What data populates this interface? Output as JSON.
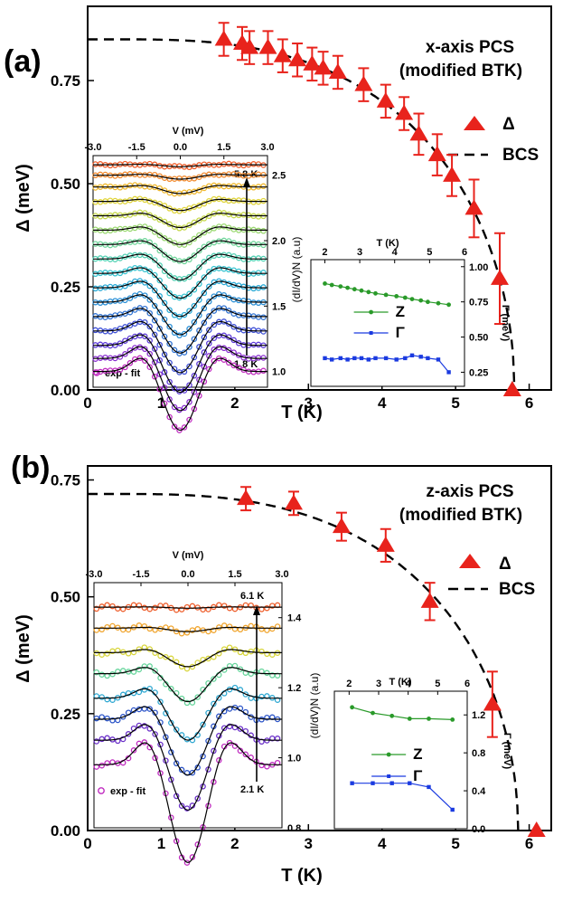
{
  "chart_data": [
    {
      "panel": "(a)",
      "type": "scatter",
      "title": "x-axis PCS",
      "subtitle": "(modified BTK)",
      "xlabel": "T (K)",
      "ylabel": "Δ (meV)",
      "xlim": [
        0,
        6.3
      ],
      "ylim": [
        0,
        0.93
      ],
      "xticks": [
        0,
        1,
        2,
        3,
        4,
        5,
        6
      ],
      "yticks": [
        0.0,
        0.25,
        0.5,
        0.75
      ],
      "legend": [
        "Δ",
        "BCS"
      ],
      "delta_series": {
        "name": "Δ",
        "x": [
          1.85,
          2.1,
          2.2,
          2.45,
          2.65,
          2.85,
          3.05,
          3.2,
          3.4,
          3.75,
          4.05,
          4.3,
          4.5,
          4.75,
          4.95,
          5.25,
          5.6,
          5.77
        ],
        "y": [
          0.85,
          0.84,
          0.83,
          0.83,
          0.81,
          0.8,
          0.79,
          0.78,
          0.77,
          0.74,
          0.7,
          0.67,
          0.62,
          0.57,
          0.52,
          0.44,
          0.27,
          0.0
        ],
        "err": [
          0.04,
          0.04,
          0.04,
          0.04,
          0.04,
          0.04,
          0.04,
          0.04,
          0.04,
          0.04,
          0.04,
          0.04,
          0.05,
          0.05,
          0.05,
          0.07,
          0.11,
          0
        ]
      },
      "bcs_fit": {
        "name": "BCS",
        "delta0": 0.85,
        "tc": 5.8
      },
      "inset_spectra": {
        "xlabel": "V (mV)",
        "xlim": [
          -3.0,
          3.0
        ],
        "xticks": [
          -3.0,
          -1.5,
          0.0,
          1.5,
          3.0
        ],
        "ylabel": "(dI/dV)N (a.u)",
        "ylim": [
          0.88,
          2.65
        ],
        "yticks": [
          1.0,
          1.5,
          2.0,
          2.5
        ],
        "t_low": "1.8 K",
        "t_high": "5.8 K",
        "legend": "exp  -  fit",
        "curves": [
          {
            "offset": 1.0,
            "depth": 0.45,
            "color": "#c02bc0"
          },
          {
            "offset": 1.1,
            "depth": 0.4,
            "color": "#8a2fd0"
          },
          {
            "offset": 1.2,
            "depth": 0.36,
            "color": "#5d3bd8"
          },
          {
            "offset": 1.31,
            "depth": 0.32,
            "color": "#3d4fd6"
          },
          {
            "offset": 1.42,
            "depth": 0.28,
            "color": "#2f72d2"
          },
          {
            "offset": 1.53,
            "depth": 0.25,
            "color": "#2a8fd6"
          },
          {
            "offset": 1.64,
            "depth": 0.22,
            "color": "#27a9d6"
          },
          {
            "offset": 1.75,
            "depth": 0.19,
            "color": "#36c3d0"
          },
          {
            "offset": 1.86,
            "depth": 0.16,
            "color": "#52d0b3"
          },
          {
            "offset": 1.97,
            "depth": 0.13,
            "color": "#6fd59a"
          },
          {
            "offset": 2.08,
            "depth": 0.11,
            "color": "#9ad870"
          },
          {
            "offset": 2.19,
            "depth": 0.09,
            "color": "#c6d84a"
          },
          {
            "offset": 2.3,
            "depth": 0.07,
            "color": "#e0d43a"
          },
          {
            "offset": 2.41,
            "depth": 0.05,
            "color": "#f0b82e"
          },
          {
            "offset": 2.5,
            "depth": 0.03,
            "color": "#f28a2e"
          },
          {
            "offset": 2.58,
            "depth": 0.015,
            "color": "#ee5d2a"
          }
        ]
      },
      "inset_params": {
        "xlabel": "T (K)",
        "xlim": [
          1.6,
          6.0
        ],
        "xticks": [
          2,
          3,
          4,
          5,
          6
        ],
        "ylabel": "Γ (meV)",
        "ylim": [
          0.15,
          1.05
        ],
        "yticks": [
          0.25,
          0.5,
          0.75,
          1.0
        ],
        "series": [
          {
            "name": "Z",
            "color": "#2a9a2a",
            "x": [
              2.0,
              2.2,
              2.45,
              2.65,
              2.85,
              3.05,
              3.25,
              3.45,
              3.75,
              4.05,
              4.3,
              4.5,
              4.75,
              4.95,
              5.25,
              5.55
            ],
            "y": [
              0.88,
              0.87,
              0.86,
              0.85,
              0.84,
              0.83,
              0.82,
              0.81,
              0.8,
              0.79,
              0.78,
              0.77,
              0.76,
              0.75,
              0.74,
              0.73
            ]
          },
          {
            "name": "Γ",
            "color": "#1a3ae0",
            "x": [
              2.0,
              2.2,
              2.45,
              2.65,
              2.85,
              3.05,
              3.25,
              3.45,
              3.75,
              4.05,
              4.3,
              4.5,
              4.75,
              4.95,
              5.25,
              5.55
            ],
            "y": [
              0.35,
              0.34,
              0.35,
              0.34,
              0.35,
              0.35,
              0.34,
              0.35,
              0.35,
              0.34,
              0.35,
              0.37,
              0.36,
              0.35,
              0.34,
              0.25
            ]
          }
        ]
      }
    },
    {
      "panel": "(b)",
      "type": "scatter",
      "title": "z-axis PCS",
      "subtitle": "(modified BTK)",
      "xlabel": "T (K)",
      "ylabel": "Δ (meV)",
      "xlim": [
        0,
        6.3
      ],
      "ylim": [
        0,
        0.78
      ],
      "xticks": [
        0,
        1,
        2,
        3,
        4,
        5,
        6
      ],
      "yticks": [
        0.0,
        0.25,
        0.5,
        0.75
      ],
      "legend": [
        "Δ",
        "BCS"
      ],
      "delta_series": {
        "name": "Δ",
        "x": [
          2.15,
          2.8,
          3.45,
          4.05,
          4.65,
          5.5,
          6.1
        ],
        "y": [
          0.71,
          0.7,
          0.65,
          0.61,
          0.49,
          0.27,
          0.0
        ],
        "err": [
          0.025,
          0.025,
          0.03,
          0.035,
          0.04,
          0.07,
          0
        ]
      },
      "bcs_fit": {
        "name": "BCS",
        "delta0": 0.72,
        "tc": 5.85
      },
      "inset_spectra": {
        "xlabel": "V (mV)",
        "xlim": [
          -3.0,
          3.0
        ],
        "xticks": [
          -3.0,
          -1.5,
          0.0,
          1.5,
          3.0
        ],
        "ylabel": "(dI/dV)N (a.u)",
        "ylim": [
          0.8,
          1.5
        ],
        "yticks": [
          0.8,
          1.0,
          1.2,
          1.4
        ],
        "t_low": "2.1 K",
        "t_high": "6.1 K",
        "legend": "exp  -  fit",
        "curves": [
          {
            "offset": 0.98,
            "depth": 0.28,
            "color": "#c02bc0"
          },
          {
            "offset": 1.05,
            "depth": 0.2,
            "color": "#6a2fc8"
          },
          {
            "offset": 1.11,
            "depth": 0.16,
            "color": "#2c55c8"
          },
          {
            "offset": 1.17,
            "depth": 0.12,
            "color": "#2fa8d2"
          },
          {
            "offset": 1.24,
            "depth": 0.08,
            "color": "#64d49a"
          },
          {
            "offset": 1.3,
            "depth": 0.04,
            "color": "#d8d53a"
          },
          {
            "offset": 1.37,
            "depth": 0.01,
            "color": "#f0a42c"
          },
          {
            "offset": 1.43,
            "depth": 0.003,
            "color": "#ee5d2a"
          }
        ]
      },
      "inset_params": {
        "xlabel": "T (K)",
        "xlim": [
          1.5,
          6.0
        ],
        "xticks": [
          2,
          3,
          4,
          5,
          6
        ],
        "ylabel": "Γ (meV)",
        "ylim": [
          0.0,
          1.45
        ],
        "yticks": [
          0.0,
          0.4,
          0.8,
          1.2
        ],
        "series": [
          {
            "name": "Z",
            "color": "#2a9a2a",
            "x": [
              2.1,
              2.8,
              3.45,
              4.05,
              4.7,
              5.5
            ],
            "y": [
              1.28,
              1.22,
              1.19,
              1.16,
              1.16,
              1.15
            ]
          },
          {
            "name": "Γ",
            "color": "#1a3ae0",
            "x": [
              2.1,
              2.8,
              3.45,
              4.05,
              4.7,
              5.5
            ],
            "y": [
              0.48,
              0.48,
              0.48,
              0.48,
              0.44,
              0.2
            ]
          }
        ]
      }
    }
  ]
}
